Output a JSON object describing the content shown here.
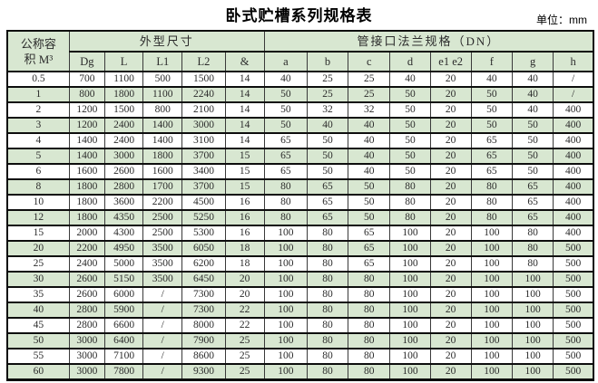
{
  "title": "卧式贮槽系列规格表",
  "unit_label": "单位：mm",
  "table": {
    "header": {
      "volume_line1": "公称容",
      "volume_line2": "积  M³",
      "group_outer_dims": "外型尺寸",
      "group_flange": "管接口法兰规格（DN）",
      "columns": [
        "Dg",
        "L",
        "L1",
        "L2",
        "&",
        "a",
        "b",
        "c",
        "d",
        "e1  e2",
        "f",
        "g",
        "h"
      ]
    },
    "rows": [
      [
        "0.5",
        "700",
        "1100",
        "500",
        "1500",
        "14",
        "40",
        "25",
        "25",
        "40",
        "20",
        "40",
        "40",
        "/"
      ],
      [
        "1",
        "800",
        "1800",
        "1100",
        "2240",
        "14",
        "50",
        "25",
        "25",
        "50",
        "20",
        "50",
        "40",
        "/"
      ],
      [
        "2",
        "1200",
        "1500",
        "800",
        "2100",
        "14",
        "50",
        "32",
        "32",
        "50",
        "20",
        "50",
        "40",
        "400"
      ],
      [
        "3",
        "1200",
        "2400",
        "1400",
        "3000",
        "14",
        "50",
        "40",
        "40",
        "50",
        "20",
        "50",
        "50",
        "400"
      ],
      [
        "4",
        "1400",
        "2400",
        "1400",
        "3100",
        "14",
        "65",
        "50",
        "40",
        "50",
        "20",
        "65",
        "50",
        "400"
      ],
      [
        "5",
        "1400",
        "3000",
        "1800",
        "3700",
        "15",
        "65",
        "50",
        "40",
        "50",
        "20",
        "65",
        "50",
        "400"
      ],
      [
        "6",
        "1600",
        "2600",
        "1600",
        "3400",
        "15",
        "65",
        "50",
        "40",
        "50",
        "20",
        "65",
        "50",
        "400"
      ],
      [
        "8",
        "1800",
        "2800",
        "1700",
        "3700",
        "15",
        "80",
        "65",
        "50",
        "80",
        "20",
        "80",
        "65",
        "400"
      ],
      [
        "10",
        "1800",
        "3600",
        "2200",
        "4500",
        "16",
        "80",
        "65",
        "50",
        "80",
        "20",
        "80",
        "65",
        "400"
      ],
      [
        "12",
        "1800",
        "4350",
        "2500",
        "5250",
        "16",
        "80",
        "65",
        "50",
        "80",
        "20",
        "80",
        "65",
        "400"
      ],
      [
        "15",
        "2000",
        "4300",
        "2500",
        "5300",
        "16",
        "100",
        "80",
        "65",
        "100",
        "20",
        "100",
        "80",
        "400"
      ],
      [
        "20",
        "2200",
        "4950",
        "3500",
        "6050",
        "18",
        "100",
        "80",
        "65",
        "100",
        "20",
        "100",
        "80",
        "500"
      ],
      [
        "25",
        "2400",
        "5000",
        "3500",
        "6200",
        "18",
        "100",
        "80",
        "65",
        "100",
        "20",
        "100",
        "80",
        "500"
      ],
      [
        "30",
        "2600",
        "5150",
        "3500",
        "6450",
        "20",
        "100",
        "80",
        "80",
        "100",
        "20",
        "100",
        "100",
        "500"
      ],
      [
        "35",
        "2600",
        "6000",
        "/",
        "7300",
        "20",
        "100",
        "80",
        "80",
        "100",
        "20",
        "100",
        "100",
        "500"
      ],
      [
        "40",
        "2800",
        "5900",
        "/",
        "7300",
        "22",
        "100",
        "80",
        "80",
        "100",
        "20",
        "100",
        "100",
        "500"
      ],
      [
        "45",
        "2800",
        "6600",
        "/",
        "8000",
        "22",
        "100",
        "80",
        "80",
        "100",
        "20",
        "100",
        "100",
        "500"
      ],
      [
        "50",
        "3000",
        "6400",
        "/",
        "7900",
        "25",
        "100",
        "80",
        "80",
        "100",
        "20",
        "100",
        "100",
        "500"
      ],
      [
        "55",
        "3000",
        "7100",
        "/",
        "8600",
        "25",
        "100",
        "80",
        "80",
        "100",
        "20",
        "100",
        "100",
        "500"
      ],
      [
        "60",
        "3000",
        "7800",
        "/",
        "9300",
        "25",
        "100",
        "80",
        "80",
        "100",
        "20",
        "100",
        "100",
        "500"
      ]
    ],
    "colors": {
      "stripe_green": "#d8e7d1",
      "row_white": "#ffffff",
      "border_dark": "#0d0d0d",
      "text": "#2b2b2b"
    }
  }
}
